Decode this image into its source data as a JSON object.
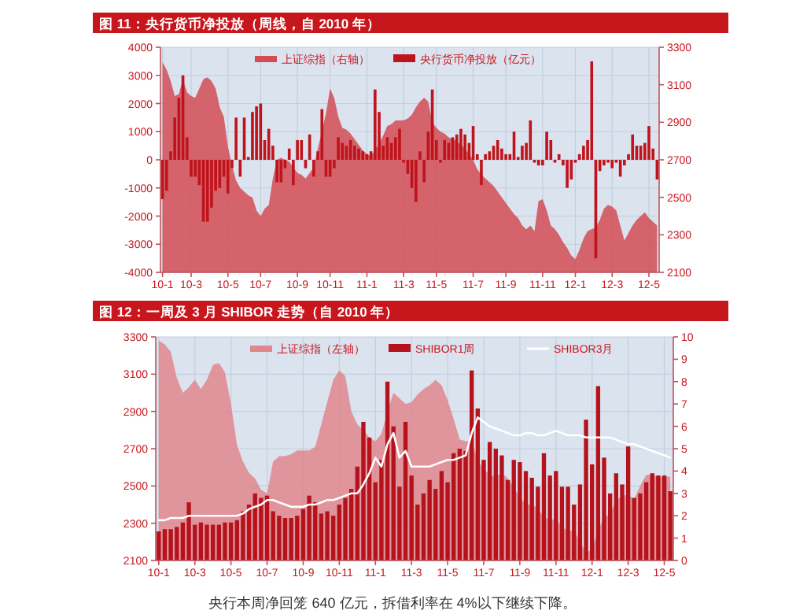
{
  "chart_data": [
    {
      "type": "bar",
      "title": "图 11：央行货币净投放（周线，自 2010 年）",
      "categories": [
        "10-1",
        null,
        null,
        null,
        null,
        null,
        null,
        "10-3",
        null,
        null,
        null,
        null,
        null,
        null,
        null,
        null,
        "10-5",
        null,
        null,
        null,
        null,
        null,
        null,
        null,
        "10-7",
        null,
        null,
        null,
        null,
        null,
        null,
        null,
        null,
        "10-9",
        null,
        null,
        null,
        null,
        null,
        null,
        null,
        "10-11",
        null,
        null,
        null,
        null,
        null,
        null,
        null,
        null,
        "11-1",
        null,
        null,
        null,
        null,
        null,
        null,
        null,
        null,
        "11-3",
        null,
        null,
        null,
        null,
        null,
        null,
        null,
        "11-5",
        null,
        null,
        null,
        null,
        null,
        null,
        null,
        null,
        "11-7",
        null,
        null,
        null,
        null,
        null,
        null,
        null,
        "11-9",
        null,
        null,
        null,
        null,
        null,
        null,
        null,
        null,
        "11-11",
        null,
        null,
        null,
        null,
        null,
        null,
        null,
        "12-1",
        null,
        null,
        null,
        null,
        null,
        null,
        null,
        null,
        "12-3",
        null,
        null,
        null,
        null,
        null,
        null,
        null,
        null,
        "12-5",
        null,
        null
      ],
      "ylim": [
        -4000,
        4000
      ],
      "yticks": [
        -4000,
        -3000,
        -2000,
        -1000,
        0,
        1000,
        2000,
        3000,
        4000
      ],
      "y2lim": [
        2100,
        3300
      ],
      "y2ticks": [
        2100,
        2300,
        2500,
        2700,
        2900,
        3100,
        3300
      ],
      "grid": true,
      "legend": "top",
      "series": [
        {
          "name": "上证综指（右轴）",
          "type": "area",
          "axis": "y2",
          "color": "#d24c55",
          "values": [
            3220,
            3180,
            3120,
            3040,
            3050,
            3130,
            3060,
            3040,
            3030,
            3080,
            3130,
            3140,
            3120,
            3080,
            2980,
            2930,
            2770,
            2670,
            2590,
            2550,
            2530,
            2510,
            2500,
            2430,
            2400,
            2440,
            2460,
            2600,
            2700,
            2710,
            2700,
            2690,
            2660,
            2630,
            2620,
            2600,
            2630,
            2660,
            2760,
            2850,
            2950,
            3080,
            3030,
            2930,
            2870,
            2860,
            2840,
            2810,
            2780,
            2750,
            2730,
            2720,
            2750,
            2790,
            2830,
            2880,
            2890,
            2910,
            2910,
            2910,
            2920,
            2940,
            2980,
            3010,
            3030,
            3010,
            2900,
            2870,
            2850,
            2840,
            2820,
            2810,
            2800,
            2780,
            2760,
            2730,
            2700,
            2650,
            2620,
            2600,
            2580,
            2560,
            2530,
            2500,
            2470,
            2440,
            2410,
            2390,
            2350,
            2330,
            2350,
            2320,
            2480,
            2490,
            2430,
            2350,
            2330,
            2300,
            2260,
            2230,
            2190,
            2170,
            2220,
            2280,
            2320,
            2330,
            2340,
            2380,
            2440,
            2460,
            2450,
            2430,
            2350,
            2270,
            2310,
            2350,
            2380,
            2400,
            2420,
            2390,
            2370,
            2350
          ]
        },
        {
          "name": "央行货币净投放（亿元）",
          "color": "#c0141c",
          "values": [
            -1400,
            -1100,
            300,
            1500,
            2200,
            3000,
            800,
            -600,
            -600,
            -900,
            -2200,
            -2200,
            -1700,
            -1100,
            -1000,
            -600,
            -1200,
            -300,
            1500,
            -600,
            1500,
            100,
            1700,
            1900,
            2000,
            700,
            1100,
            500,
            -800,
            -800,
            -300,
            400,
            -900,
            700,
            700,
            -300,
            900,
            -600,
            300,
            1800,
            -600,
            -600,
            -300,
            800,
            600,
            500,
            700,
            500,
            400,
            300,
            200,
            300,
            2500,
            1700,
            500,
            800,
            600,
            800,
            1100,
            -100,
            -500,
            -1000,
            -1500,
            300,
            -800,
            1000,
            2500,
            700,
            -100,
            700,
            600,
            800,
            900,
            1100,
            900,
            600,
            1200,
            200,
            -900,
            200,
            300,
            500,
            700,
            400,
            200,
            200,
            1000,
            100,
            500,
            600,
            1400,
            -100,
            -200,
            -200,
            1000,
            700,
            -100,
            200,
            -200,
            -1000,
            -700,
            -100,
            200,
            500,
            700,
            3500,
            -3500,
            -400,
            -200,
            -100,
            -300,
            -100,
            -600,
            -200,
            200,
            900,
            500,
            500,
            600,
            1200,
            400,
            -700
          ]
        }
      ]
    },
    {
      "type": "bar",
      "title": "图 12：一周及 3 月 SHIBOR 走势（自 2010 年）",
      "categories": [
        "10-1",
        null,
        null,
        null,
        null,
        null,
        "10-3",
        null,
        null,
        null,
        null,
        null,
        "10-5",
        null,
        null,
        null,
        null,
        null,
        "10-7",
        null,
        null,
        null,
        null,
        null,
        "10-9",
        null,
        null,
        null,
        null,
        null,
        "10-11",
        null,
        null,
        null,
        null,
        null,
        "11-1",
        null,
        null,
        null,
        null,
        null,
        "11-3",
        null,
        null,
        null,
        null,
        null,
        "11-5",
        null,
        null,
        null,
        null,
        null,
        "11-7",
        null,
        null,
        null,
        null,
        null,
        "11-9",
        null,
        null,
        null,
        null,
        null,
        "11-11",
        null,
        null,
        null,
        null,
        null,
        "12-1",
        null,
        null,
        null,
        null,
        null,
        "12-3",
        null,
        null,
        null,
        null,
        null,
        "12-5",
        null
      ],
      "ylim": [
        2100,
        3300
      ],
      "yticks": [
        2100,
        2300,
        2500,
        2700,
        2900,
        3100,
        3300
      ],
      "y2lim": [
        0,
        10
      ],
      "y2ticks": [
        0,
        1,
        2,
        3,
        4,
        5,
        6,
        7,
        8,
        9,
        10
      ],
      "grid": true,
      "legend": "top",
      "annotations": [
        "央行本周净回笼 640 亿元，拆借利率在 4%以下继续下降。"
      ],
      "series": [
        {
          "name": "上证综指（左轴）",
          "type": "area",
          "color": "#e0868d",
          "values": [
            3280,
            3260,
            3220,
            3080,
            3000,
            3030,
            3070,
            3020,
            3070,
            3150,
            3160,
            3110,
            2940,
            2720,
            2630,
            2570,
            2540,
            2480,
            2460,
            2630,
            2660,
            2660,
            2670,
            2690,
            2690,
            2690,
            2710,
            2830,
            2950,
            3070,
            3120,
            3090,
            2900,
            2830,
            2800,
            2760,
            2740,
            2780,
            2900,
            3000,
            2970,
            2940,
            2950,
            2990,
            3020,
            3040,
            3070,
            3040,
            2960,
            2860,
            2750,
            2740,
            2740,
            2640,
            2590,
            2560,
            2550,
            2570,
            2540,
            2490,
            2440,
            2400,
            2400,
            2380,
            2330,
            2320,
            2320,
            2280,
            2260,
            2260,
            2200,
            2140,
            2160,
            2260,
            2330,
            2350,
            2420,
            2450,
            2450,
            2430,
            2500,
            2560,
            2560,
            2550,
            2550,
            2550
          ]
        },
        {
          "name": "SHIBOR1周",
          "axis": "y2",
          "color": "#b5121b",
          "values": [
            1.3,
            1.4,
            1.4,
            1.5,
            1.7,
            2.6,
            1.6,
            1.7,
            1.6,
            1.6,
            1.6,
            1.7,
            1.7,
            1.8,
            2.2,
            2.5,
            3.0,
            2.8,
            2.9,
            2.2,
            2.0,
            1.9,
            1.9,
            2.0,
            2.3,
            2.9,
            2.6,
            2.1,
            2.2,
            2.0,
            2.5,
            2.8,
            3.2,
            4.2,
            6.2,
            5.5,
            3.5,
            4.5,
            8.0,
            6.0,
            3.3,
            6.2,
            3.8,
            2.5,
            3.0,
            3.6,
            3.2,
            4.0,
            3.5,
            4.8,
            5.0,
            4.9,
            8.5,
            6.8,
            4.5,
            5.3,
            5.0,
            4.7,
            3.6,
            4.5,
            4.4,
            4.0,
            3.7,
            3.3,
            4.8,
            3.8,
            4.0,
            3.3,
            3.3,
            2.5,
            3.4,
            6.3,
            4.3,
            7.8,
            4.6,
            3.0,
            3.9,
            3.4,
            5.1,
            2.8,
            3.0,
            3.5,
            3.9,
            3.8,
            3.8,
            3.1
          ]
        },
        {
          "name": "SHIBOR3月",
          "type": "line",
          "axis": "y2",
          "color": "#ffffff",
          "values": [
            1.8,
            1.8,
            1.9,
            1.9,
            1.9,
            2.0,
            2.0,
            2.0,
            2.0,
            2.0,
            2.0,
            2.0,
            2.0,
            2.0,
            2.1,
            2.3,
            2.4,
            2.5,
            2.7,
            2.7,
            2.6,
            2.5,
            2.4,
            2.4,
            2.4,
            2.5,
            2.5,
            2.6,
            2.7,
            2.7,
            2.8,
            2.9,
            3.0,
            3.0,
            3.4,
            3.9,
            4.6,
            4.2,
            5.2,
            5.7,
            4.6,
            4.9,
            4.2,
            4.2,
            4.2,
            4.2,
            4.3,
            4.4,
            4.5,
            4.5,
            4.6,
            4.7,
            5.7,
            6.4,
            6.2,
            6.0,
            5.9,
            5.8,
            5.7,
            5.6,
            5.6,
            5.7,
            5.7,
            5.6,
            5.6,
            5.7,
            5.8,
            5.7,
            5.6,
            5.6,
            5.6,
            5.5,
            5.5,
            5.5,
            5.5,
            5.5,
            5.4,
            5.3,
            5.2,
            5.2,
            5.1,
            5.0,
            4.9,
            4.8,
            4.7,
            4.6
          ]
        }
      ]
    }
  ]
}
